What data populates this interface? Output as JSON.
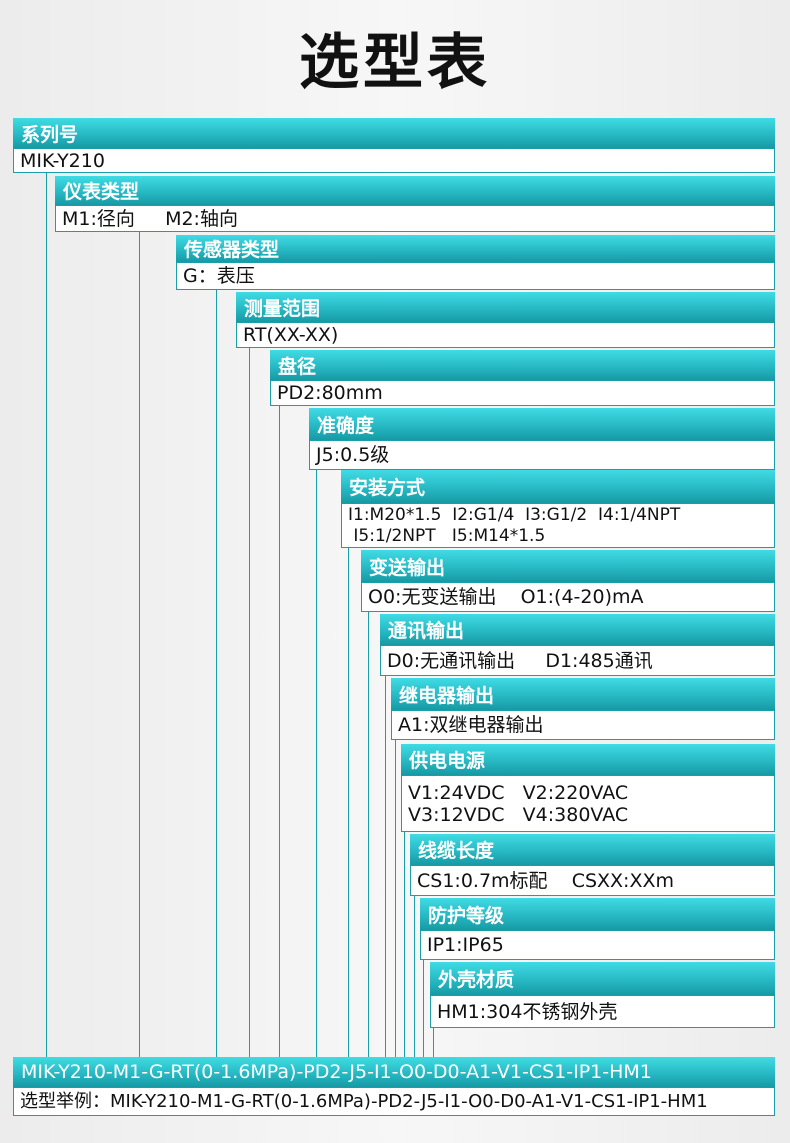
{
  "title": "选型表",
  "sections": [
    {
      "label": "系列号",
      "lines": [
        "MIK-Y210"
      ]
    },
    {
      "label": "仪表类型",
      "lines": [
        "M1:径向     M2:轴向"
      ]
    },
    {
      "label": "传感器类型",
      "lines": [
        "G：表压"
      ]
    },
    {
      "label": "测量范围",
      "lines": [
        "RT(XX-XX)"
      ]
    },
    {
      "label": "盘径",
      "lines": [
        "PD2:80mm"
      ]
    },
    {
      "label": "准确度",
      "lines": [
        "J5:0.5级"
      ]
    },
    {
      "label": "安装方式",
      "lines": [
        "I1:M20*1.5  I2:G1/4  I3:G1/2  I4:1/4NPT",
        " I5:1/2NPT   I5:M14*1.5"
      ]
    },
    {
      "label": "变送输出",
      "lines": [
        "O0:无变送输出    O1:(4-20)mA"
      ]
    },
    {
      "label": "通讯输出",
      "lines": [
        "D0:无通讯输出     D1:485通讯"
      ]
    },
    {
      "label": "继电器输出",
      "lines": [
        "A1:双继电器输出"
      ]
    },
    {
      "label": "供电电源",
      "lines": [
        "V1:24VDC   V2:220VAC",
        "V3:12VDC   V4:380VAC"
      ]
    },
    {
      "label": "线缆长度",
      "lines": [
        "CS1:0.7m标配    CSXX:XXm"
      ]
    },
    {
      "label": "防护等级",
      "lines": [
        "IP1:IP65"
      ]
    },
    {
      "label": "外壳材质",
      "lines": [
        "HM1:304不锈钢外壳"
      ]
    }
  ],
  "example": {
    "code": "MIK-Y210-M1-G-RT(0-1.6MPa)-PD2-J5-I1-O0-D0-A1-V1-CS1-IP1-HM1",
    "label": "选型举例：",
    "value": "MIK-Y210-M1-G-RT(0-1.6MPa)-PD2-J5-I1-O0-D0-A1-V1-CS1-IP1-HM1"
  },
  "colors": {
    "header_top": "#40dbe4",
    "header_bottom": "#169aa4",
    "border": "#1a9fa8"
  }
}
